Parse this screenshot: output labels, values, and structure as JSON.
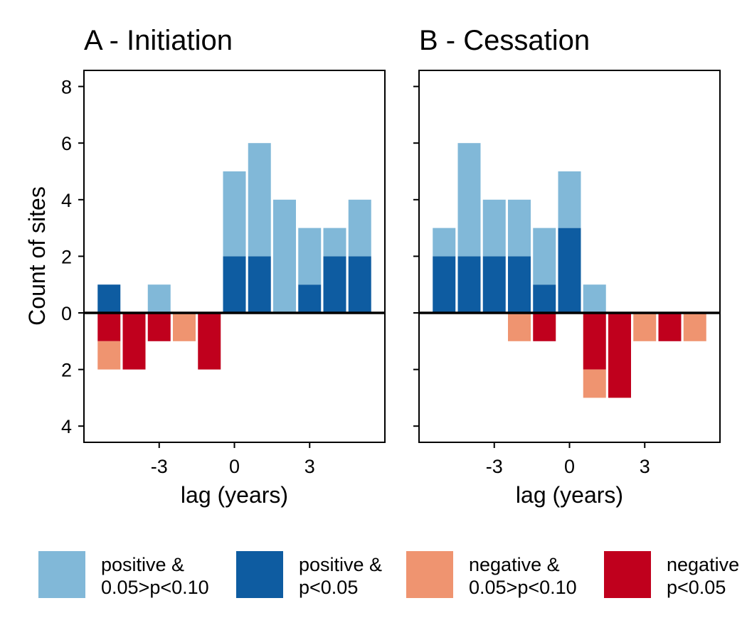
{
  "chart_data": {
    "type": "bar",
    "stacked": true,
    "ylabel": "Count of sites",
    "xlabel": "lag (years)",
    "ylim": [
      -4.5,
      8.5
    ],
    "yticks": [
      {
        "value": 8,
        "label": "8"
      },
      {
        "value": 6,
        "label": "6"
      },
      {
        "value": 4,
        "label": "4"
      },
      {
        "value": 2,
        "label": "2"
      },
      {
        "value": 0,
        "label": "0"
      },
      {
        "value": -2,
        "label": "2"
      },
      {
        "value": -4,
        "label": "4"
      }
    ],
    "xlim": [
      -6,
      6
    ],
    "xticks": [
      {
        "value": -3,
        "label": "-3"
      },
      {
        "value": 0,
        "label": "0"
      },
      {
        "value": 3,
        "label": "3"
      }
    ],
    "categories": [
      -5,
      -4,
      -3,
      -2,
      -1,
      0,
      1,
      2,
      3,
      4,
      5
    ],
    "series_keys": [
      "pos_sig",
      "pos_marg",
      "neg_sig",
      "neg_marg"
    ],
    "legend": {
      "position": "bottom",
      "entries": [
        {
          "key": "pos_marg",
          "line1": "positive &",
          "line2": "0.05>p<0.10",
          "color": "#81b8d8"
        },
        {
          "key": "pos_sig",
          "line1": "positive &",
          "line2": "p<0.05",
          "color": "#0e5ca1"
        },
        {
          "key": "neg_marg",
          "line1": "negative &",
          "line2": "0.05>p<0.10",
          "color": "#ef9470"
        },
        {
          "key": "neg_sig",
          "line1": "negative",
          "line2": "p<0.05",
          "color": "#c0001d"
        }
      ]
    },
    "panels": [
      {
        "title": "A - Initiation",
        "series": [
          {
            "key": "pos_sig",
            "values": [
              1,
              0,
              0,
              0,
              0,
              2,
              2,
              0,
              1,
              2,
              2
            ]
          },
          {
            "key": "pos_marg",
            "values": [
              0,
              0,
              1,
              0,
              0,
              3,
              4,
              4,
              2,
              1,
              2
            ]
          },
          {
            "key": "neg_sig",
            "values": [
              1,
              2,
              1,
              0,
              2,
              0,
              0,
              0,
              0,
              0,
              0
            ]
          },
          {
            "key": "neg_marg",
            "values": [
              1,
              0,
              0,
              1,
              0,
              0,
              0,
              0,
              0,
              0,
              0
            ]
          }
        ]
      },
      {
        "title": "B - Cessation",
        "series": [
          {
            "key": "pos_sig",
            "values": [
              2,
              2,
              2,
              2,
              1,
              3,
              0,
              0,
              0,
              0,
              0
            ]
          },
          {
            "key": "pos_marg",
            "values": [
              1,
              4,
              2,
              2,
              2,
              2,
              1,
              0,
              0,
              0,
              0
            ]
          },
          {
            "key": "neg_sig",
            "values": [
              0,
              0,
              0,
              0,
              1,
              0,
              2,
              3,
              0,
              1,
              0
            ]
          },
          {
            "key": "neg_marg",
            "values": [
              0,
              0,
              0,
              1,
              0,
              0,
              1,
              0,
              1,
              0,
              1
            ]
          }
        ]
      }
    ]
  }
}
